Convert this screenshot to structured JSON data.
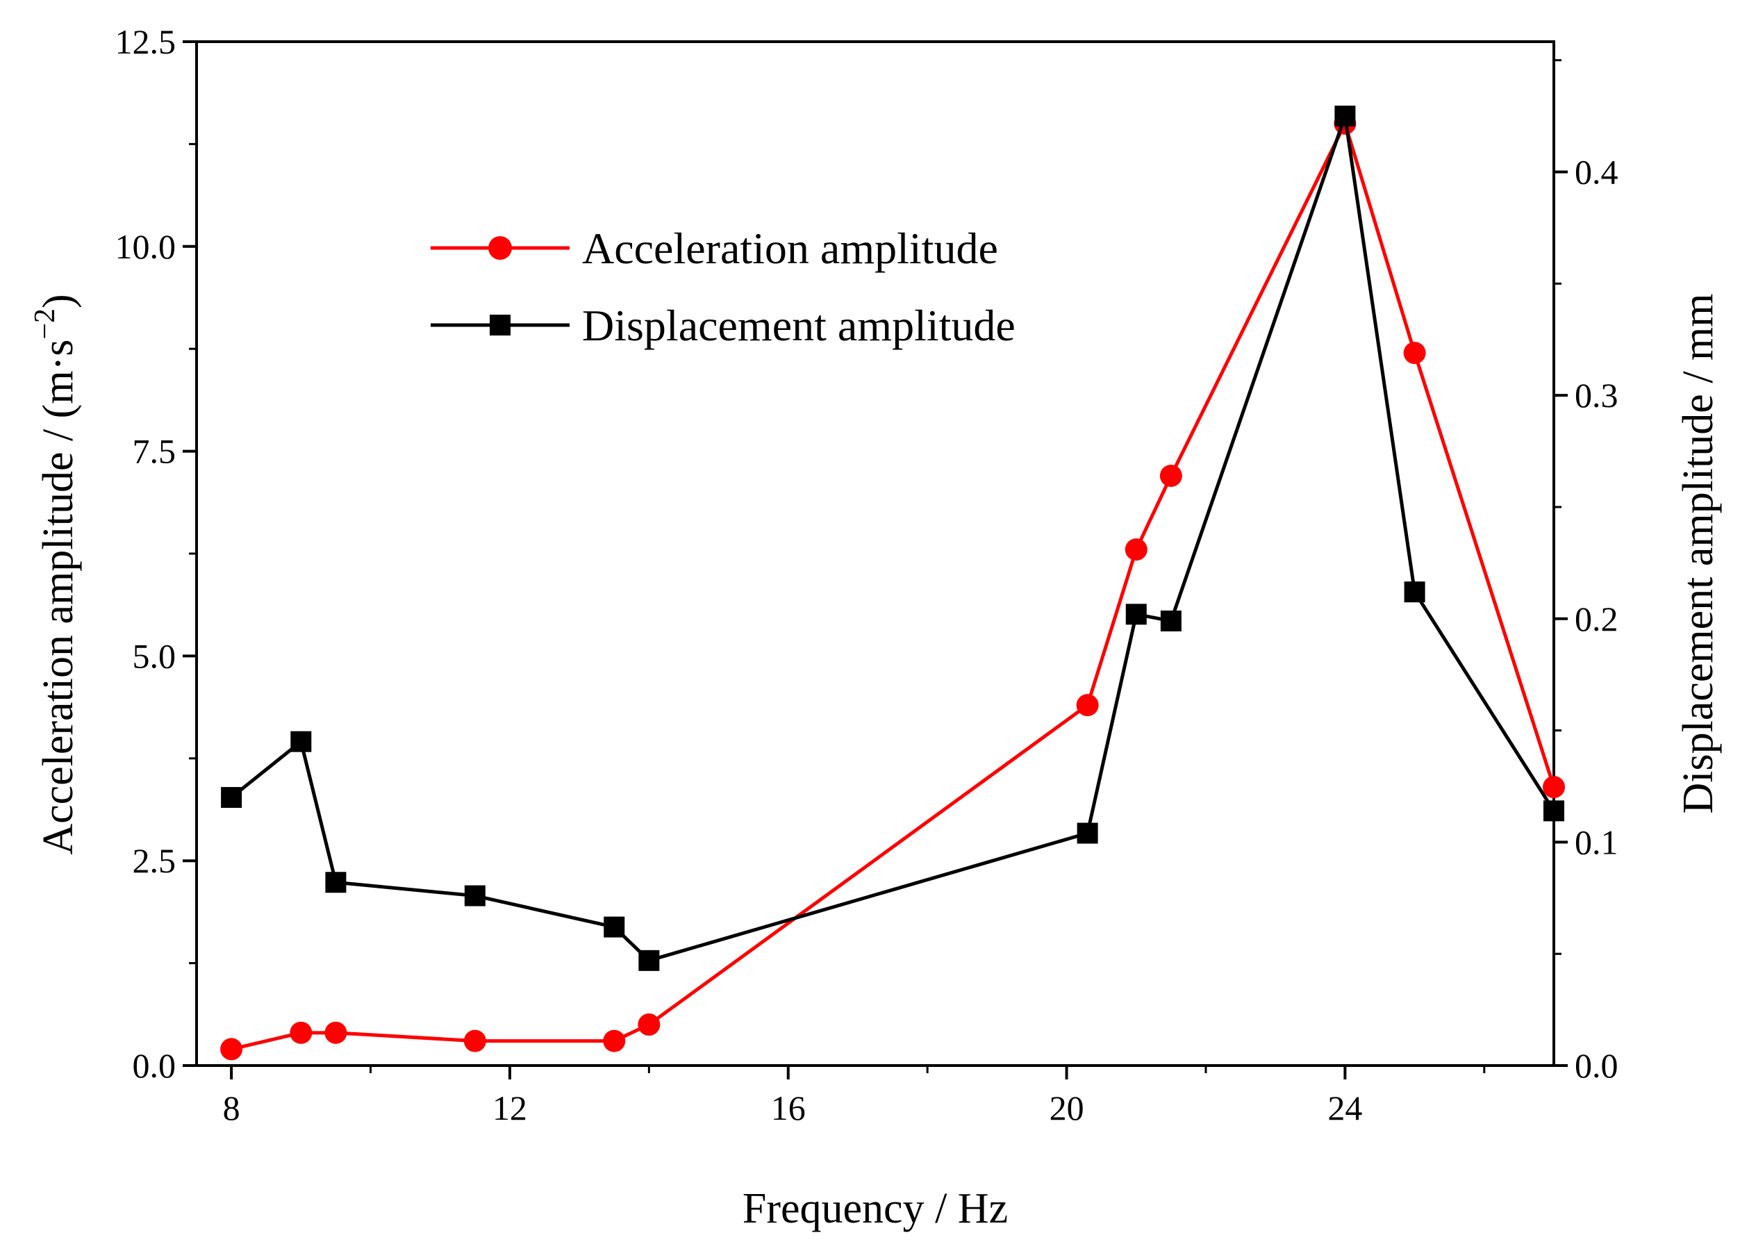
{
  "chart_data": {
    "type": "line",
    "x_label": "Frequency / Hz",
    "y_left_label_prefix": "Acceleration amplitude / (m·s",
    "y_left_label_exp": "−2",
    "y_left_label_suffix": ")",
    "y_right_label": "Displacement amplitude / mm",
    "x_range": [
      7.5,
      27
    ],
    "x_ticks": [
      "8",
      "12",
      "16",
      "20",
      "24"
    ],
    "x_tick_values": [
      8,
      12,
      16,
      20,
      24
    ],
    "y_left_range": [
      0,
      12.5
    ],
    "y_left_ticks": [
      "0.0",
      "2.5",
      "5.0",
      "7.5",
      "10.0",
      "12.5"
    ],
    "y_left_tick_values": [
      0,
      2.5,
      5,
      7.5,
      10,
      12.5
    ],
    "y_right_range": [
      0,
      0.4583
    ],
    "y_right_ticks": [
      "0.0",
      "0.1",
      "0.2",
      "0.3",
      "0.4"
    ],
    "y_right_tick_values": [
      0,
      0.1,
      0.2,
      0.3,
      0.4
    ],
    "legend_position": "top-center",
    "series": [
      {
        "name": "Acceleration amplitude",
        "axis": "left",
        "color": "#ff0000",
        "marker": "circle",
        "x": [
          8,
          9,
          9.5,
          11.5,
          13.5,
          14,
          20.3,
          21,
          21.5,
          24,
          25,
          27
        ],
        "y": [
          0.2,
          0.4,
          0.4,
          0.3,
          0.3,
          0.5,
          4.4,
          6.3,
          7.2,
          11.5,
          8.7,
          3.4
        ]
      },
      {
        "name": "Displacement amplitude",
        "axis": "right",
        "color": "#000000",
        "marker": "square",
        "x": [
          8,
          9,
          9.5,
          11.5,
          13.5,
          14,
          20.3,
          21,
          21.5,
          24,
          25,
          27
        ],
        "y": [
          0.12,
          0.145,
          0.082,
          0.076,
          0.062,
          0.047,
          0.104,
          0.202,
          0.199,
          0.425,
          0.212,
          0.114
        ]
      }
    ]
  }
}
